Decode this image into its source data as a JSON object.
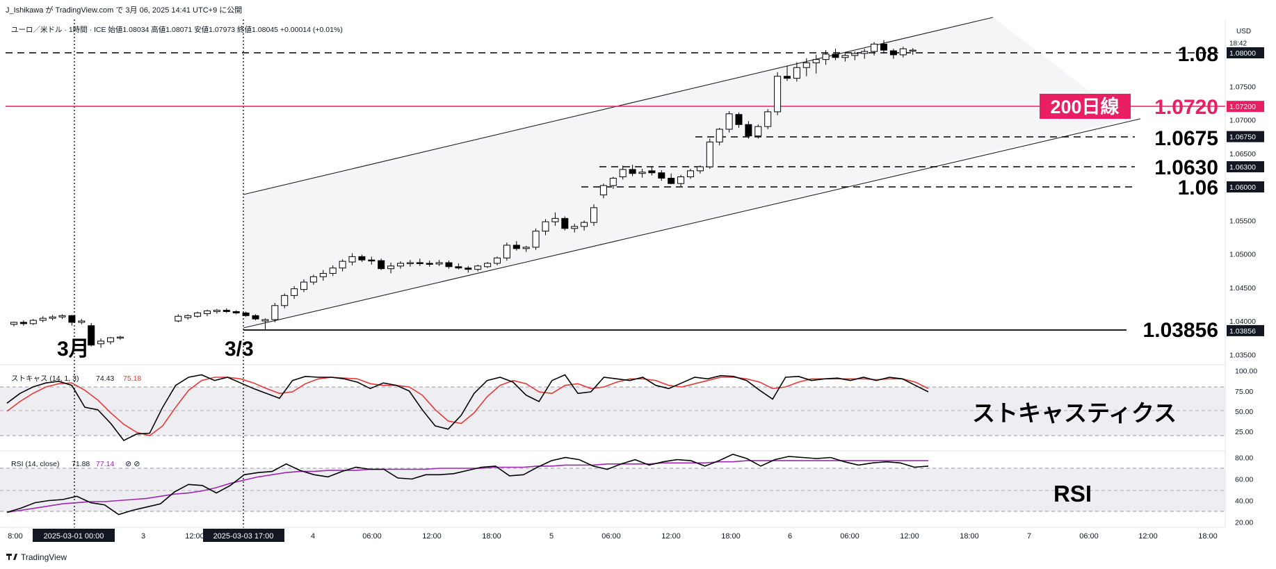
{
  "header": {
    "publisher": "J_Ishikawa が TradingView.com で 3月 06, 2025 14:41 UTC+9 に公開",
    "symbol_line": "ユーロ／米ドル · 1時間 · ICE  始値1.08034  高値1.08071  安値1.07973  終値1.08045  +0.00014 (+0.01%)",
    "currency": "USD",
    "countdown": "18:42",
    "footer_logo": "TradingView"
  },
  "colors": {
    "up": "#ffffff",
    "down": "#000000",
    "ma200": "#e91e63",
    "stoch_k": "#000000",
    "stoch_d": "#e53935",
    "rsi": "#000000",
    "rsi_ma": "#9c27b0",
    "channel_fill": "#f5f5f8"
  },
  "annotations": {
    "level_108": "1.08",
    "ma200_tag": "200日線",
    "ma200_value": "1.0720",
    "level_10675": "1.0675",
    "level_10630": "1.0630",
    "level_106": "1.06",
    "level_low": "1.03856",
    "march_label": "3月",
    "mar3_label": "3/3",
    "stoch_title": "ストキャスティクス",
    "rsi_title": "RSI"
  },
  "price_axis": {
    "ticks": [
      "1.08000",
      "1.07500",
      "1.07200",
      "1.07000",
      "1.06750",
      "1.06500",
      "1.06300",
      "1.06000",
      "1.05500",
      "1.05000",
      "1.04500",
      "1.04000",
      "1.03856",
      "1.03500"
    ]
  },
  "stoch_panel": {
    "legend_name": "ストキャス (14, 1, 3)",
    "k_value": "74.43",
    "d_value": "75.18",
    "ticks": [
      "100.00",
      "75.00",
      "50.00",
      "25.00"
    ]
  },
  "rsi_panel": {
    "legend_name": "RSI (14, close)",
    "rsi_value": "71.88",
    "ma_value": "77.14",
    "ticks": [
      "80.00",
      "60.00",
      "40.00",
      "20.00"
    ]
  },
  "time_axis": {
    "ticks": [
      "8:00",
      "3",
      "12:00",
      "4",
      "06:00",
      "12:00",
      "18:00",
      "5",
      "06:00",
      "12:00",
      "18:00",
      "6",
      "06:00",
      "12:00",
      "18:00",
      "7",
      "06:00",
      "12:00",
      "18:00"
    ],
    "highlight_1": "2025-03-01   00:00",
    "highlight_2": "2025-03-03   17:00"
  },
  "chart_data": {
    "type": "candlestick",
    "title": "ユーロ／米ドル · 1時間 · ICE",
    "ylim": [
      1.0335,
      1.0838
    ],
    "horizontal_levels": [
      1.08,
      1.072,
      1.0675,
      1.063,
      1.06,
      1.03856
    ],
    "candles": [
      [
        1.0395,
        1.0399,
        1.0392,
        1.0398
      ],
      [
        1.0398,
        1.0401,
        1.0393,
        1.0396
      ],
      [
        1.0396,
        1.0403,
        1.0394,
        1.0401
      ],
      [
        1.0401,
        1.0407,
        1.0398,
        1.0404
      ],
      [
        1.0404,
        1.0409,
        1.0401,
        1.0406
      ],
      [
        1.0406,
        1.041,
        1.0403,
        1.0408
      ],
      [
        1.0408,
        1.0409,
        1.0393,
        1.0398
      ],
      [
        1.0398,
        1.0403,
        1.0395,
        1.04
      ],
      [
        1.0393,
        1.0397,
        1.0362,
        1.0364
      ],
      [
        1.0366,
        1.0374,
        1.036,
        1.037
      ],
      [
        1.0369,
        1.0376,
        1.0365,
        1.0375
      ],
      [
        1.0375,
        1.0378,
        1.0372,
        1.0376
      ],
      [
        1.04,
        1.041,
        1.0398,
        1.0407
      ],
      [
        1.0405,
        1.041,
        1.0402,
        1.0408
      ],
      [
        1.0407,
        1.0414,
        1.0405,
        1.0412
      ],
      [
        1.0411,
        1.0417,
        1.0407,
        1.0415
      ],
      [
        1.0414,
        1.0418,
        1.0411,
        1.0416
      ],
      [
        1.0416,
        1.0419,
        1.0412,
        1.0414
      ],
      [
        1.0414,
        1.0416,
        1.041,
        1.0412
      ],
      [
        1.0412,
        1.0414,
        1.0406,
        1.0408
      ],
      [
        1.0408,
        1.041,
        1.0401,
        1.0403
      ],
      [
        1.04,
        1.0404,
        1.0386,
        1.0402
      ],
      [
        1.0402,
        1.0427,
        1.0398,
        1.0423
      ],
      [
        1.0423,
        1.0441,
        1.0419,
        1.0438
      ],
      [
        1.0438,
        1.0452,
        1.0433,
        1.0448
      ],
      [
        1.0447,
        1.0462,
        1.0443,
        1.0458
      ],
      [
        1.0458,
        1.0469,
        1.0454,
        1.0466
      ],
      [
        1.0466,
        1.0476,
        1.046,
        1.0471
      ],
      [
        1.0471,
        1.0483,
        1.0467,
        1.0479
      ],
      [
        1.0479,
        1.0492,
        1.0474,
        1.0489
      ],
      [
        1.0488,
        1.0501,
        1.0483,
        1.0496
      ],
      [
        1.0496,
        1.0499,
        1.0488,
        1.0491
      ],
      [
        1.0491,
        1.0496,
        1.0484,
        1.049
      ],
      [
        1.049,
        1.0493,
        1.0476,
        1.0478
      ],
      [
        1.0478,
        1.0487,
        1.0471,
        1.0482
      ],
      [
        1.0482,
        1.0489,
        1.0478,
        1.0486
      ],
      [
        1.0486,
        1.0491,
        1.0481,
        1.0487
      ],
      [
        1.0487,
        1.0493,
        1.0482,
        1.0486
      ],
      [
        1.0486,
        1.049,
        1.0481,
        1.0485
      ],
      [
        1.0485,
        1.0491,
        1.0482,
        1.0487
      ],
      [
        1.0487,
        1.049,
        1.0478,
        1.0481
      ],
      [
        1.0481,
        1.0486,
        1.0477,
        1.0479
      ],
      [
        1.0479,
        1.0482,
        1.0472,
        1.0477
      ],
      [
        1.0477,
        1.0484,
        1.0474,
        1.0482
      ],
      [
        1.0481,
        1.0488,
        1.0479,
        1.0486
      ],
      [
        1.0486,
        1.0496,
        1.0483,
        1.0494
      ],
      [
        1.0494,
        1.0517,
        1.049,
        1.0513
      ],
      [
        1.0513,
        1.0519,
        1.0505,
        1.0508
      ],
      [
        1.0508,
        1.0512,
        1.0503,
        1.051
      ],
      [
        1.051,
        1.0538,
        1.0506,
        1.0534
      ],
      [
        1.0534,
        1.0552,
        1.0528,
        1.0548
      ],
      [
        1.0548,
        1.0562,
        1.0542,
        1.0553
      ],
      [
        1.0553,
        1.0556,
        1.0535,
        1.0538
      ],
      [
        1.0538,
        1.0545,
        1.0532,
        1.0541
      ],
      [
        1.0541,
        1.055,
        1.0535,
        1.0547
      ],
      [
        1.0547,
        1.0574,
        1.0542,
        1.0569
      ],
      [
        1.0588,
        1.0605,
        1.0583,
        1.0602
      ],
      [
        1.0602,
        1.0615,
        1.0597,
        1.0613
      ],
      [
        1.0615,
        1.0632,
        1.0611,
        1.0626
      ],
      [
        1.0626,
        1.0633,
        1.0616,
        1.062
      ],
      [
        1.062,
        1.0627,
        1.0614,
        1.0622
      ],
      [
        1.0624,
        1.063,
        1.0617,
        1.0621
      ],
      [
        1.0621,
        1.0625,
        1.0609,
        1.0613
      ],
      [
        1.0613,
        1.062,
        1.0604,
        1.0605
      ],
      [
        1.0605,
        1.0618,
        1.0601,
        1.0615
      ],
      [
        1.0615,
        1.0627,
        1.0612,
        1.0624
      ],
      [
        1.0624,
        1.0632,
        1.062,
        1.063
      ],
      [
        1.063,
        1.0672,
        1.0627,
        1.0667
      ],
      [
        1.0667,
        1.0688,
        1.0662,
        1.0686
      ],
      [
        1.0686,
        1.0713,
        1.0681,
        1.0709
      ],
      [
        1.0708,
        1.0711,
        1.0688,
        1.0693
      ],
      [
        1.0693,
        1.0698,
        1.0672,
        1.0676
      ],
      [
        1.0676,
        1.0693,
        1.0672,
        1.069
      ],
      [
        1.069,
        1.0716,
        1.0686,
        1.0712
      ],
      [
        1.0712,
        1.0771,
        1.0707,
        1.0765
      ],
      [
        1.0765,
        1.0781,
        1.0758,
        1.0762
      ],
      [
        1.0762,
        1.0786,
        1.0757,
        1.0778
      ],
      [
        1.0778,
        1.0792,
        1.0765,
        1.0785
      ],
      [
        1.0785,
        1.0797,
        1.0769,
        1.079
      ],
      [
        1.079,
        1.0804,
        1.0782,
        1.0798
      ],
      [
        1.0798,
        1.0806,
        1.0789,
        1.0793
      ],
      [
        1.0793,
        1.0799,
        1.0787,
        1.0796
      ],
      [
        1.0796,
        1.0802,
        1.0789,
        1.0799
      ],
      [
        1.0799,
        1.0806,
        1.0791,
        1.0802
      ],
      [
        1.0802,
        1.0816,
        1.0796,
        1.0813
      ],
      [
        1.0813,
        1.0819,
        1.0799,
        1.0804
      ],
      [
        1.0803,
        1.0806,
        1.0791,
        1.0797
      ],
      [
        1.0797,
        1.0809,
        1.0793,
        1.0806
      ],
      [
        1.0803,
        1.0807,
        1.0797,
        1.0804
      ]
    ],
    "stochastic": {
      "k": [
        60,
        72,
        80,
        85,
        87,
        82,
        55,
        52,
        35,
        14,
        22,
        23,
        55,
        82,
        92,
        95,
        88,
        92,
        85,
        78,
        72,
        66,
        88,
        93,
        92,
        92,
        90,
        86,
        78,
        85,
        82,
        75,
        52,
        32,
        28,
        45,
        72,
        88,
        92,
        86,
        70,
        62,
        88,
        95,
        72,
        74,
        92,
        90,
        88,
        92,
        82,
        78,
        85,
        92,
        90,
        94,
        93,
        88,
        76,
        65,
        92,
        93,
        88,
        90,
        91,
        88,
        92,
        88,
        92,
        90,
        82,
        74
      ],
      "d": [
        50,
        62,
        72,
        80,
        84,
        85,
        76,
        64,
        48,
        34,
        24,
        20,
        32,
        55,
        76,
        88,
        92,
        92,
        90,
        85,
        78,
        72,
        74,
        84,
        90,
        92,
        91,
        90,
        84,
        82,
        82,
        80,
        70,
        52,
        38,
        35,
        48,
        68,
        82,
        88,
        84,
        74,
        72,
        82,
        84,
        78,
        80,
        86,
        90,
        90,
        88,
        82,
        80,
        84,
        88,
        92,
        92,
        90,
        86,
        78,
        80,
        86,
        90,
        90,
        90,
        90,
        90,
        89,
        90,
        90,
        86,
        78
      ]
    },
    "rsi": {
      "rsi": [
        29,
        33,
        38,
        40,
        41,
        44,
        38,
        36,
        27,
        31,
        34,
        37,
        48,
        55,
        54,
        47,
        54,
        64,
        66,
        67,
        74,
        68,
        64,
        62,
        67,
        71,
        69,
        69,
        61,
        60,
        64,
        64,
        65,
        68,
        71,
        72,
        63,
        64,
        71,
        77,
        80,
        78,
        72,
        69,
        74,
        78,
        73,
        76,
        78,
        77,
        72,
        77,
        83,
        79,
        72,
        78,
        81,
        80,
        79,
        80,
        76,
        73,
        75,
        76,
        75,
        71,
        72
      ],
      "ma": [
        29,
        31,
        33,
        35,
        37,
        38,
        39,
        39,
        40,
        41,
        42,
        44,
        46,
        47,
        49,
        52,
        56,
        59,
        62,
        64,
        66,
        67,
        67,
        68,
        68,
        68,
        69,
        69,
        69,
        69,
        69,
        70,
        70,
        70,
        70,
        71,
        71,
        71,
        72,
        72,
        73,
        73,
        73,
        74,
        74,
        74,
        74,
        75,
        75,
        75,
        75,
        76,
        76,
        77,
        77,
        77,
        77,
        77,
        77,
        77,
        77,
        77,
        77,
        77,
        77,
        77,
        77
      ]
    }
  }
}
